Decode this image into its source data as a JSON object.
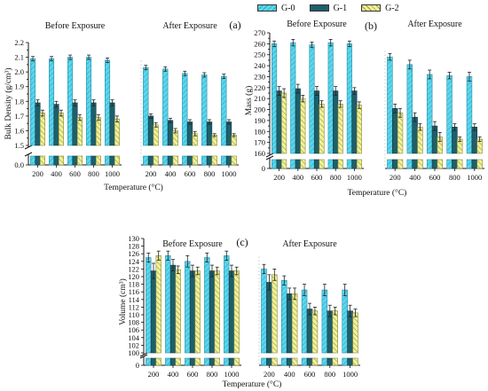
{
  "figure": {
    "legend": [
      {
        "name": "G-0",
        "color": "#5bd6ec",
        "pattern": "diag-right"
      },
      {
        "name": "G-1",
        "color": "#1e5f6b",
        "pattern": "none"
      },
      {
        "name": "G-2",
        "color": "#f1f19a",
        "pattern": "diag-left"
      }
    ]
  },
  "chart_data": [
    {
      "id": "a",
      "type": "bar",
      "panel_label": "(a)",
      "ylabel": "Bulk Density (g/cm³)",
      "xlabel": "Temperature (°C)",
      "ylim": [
        0,
        2.2
      ],
      "axis_break": [
        0.05,
        1.5
      ],
      "yticks": [
        0,
        1.5,
        1.55,
        1.6,
        1.65,
        1.7,
        1.75,
        1.8,
        1.85,
        1.9,
        1.95,
        2.0,
        2.05,
        2.1,
        2.15,
        2.2
      ],
      "ytick_labels": [
        "0.0",
        "1.5",
        "",
        "1.6",
        "",
        "1.7",
        "",
        "1.8",
        "",
        "1.9",
        "",
        "2.0",
        "",
        "2.1",
        "",
        "2.2"
      ],
      "groups": [
        {
          "title": "Before Exposure",
          "categories": [
            "200",
            "400",
            "600",
            "800",
            "1000"
          ],
          "series": [
            {
              "name": "G-0",
              "values": [
                2.09,
                2.09,
                2.1,
                2.1,
                2.08
              ],
              "errors": [
                0.015,
                0.015,
                0.015,
                0.015,
                0.015
              ]
            },
            {
              "name": "G-1",
              "values": [
                1.79,
                1.78,
                1.79,
                1.79,
                1.79
              ],
              "errors": [
                0.02,
                0.02,
                0.02,
                0.02,
                0.02
              ]
            },
            {
              "name": "G-2",
              "values": [
                1.72,
                1.72,
                1.69,
                1.69,
                1.68
              ],
              "errors": [
                0.02,
                0.02,
                0.02,
                0.02,
                0.02
              ]
            }
          ]
        },
        {
          "title": "After Exposure",
          "categories": [
            "200",
            "400",
            "600",
            "800",
            "1000"
          ],
          "series": [
            {
              "name": "G-0",
              "values": [
                2.03,
                2.02,
                1.99,
                1.98,
                1.97
              ],
              "errors": [
                0.015,
                0.015,
                0.015,
                0.015,
                0.015
              ]
            },
            {
              "name": "G-1",
              "values": [
                1.7,
                1.67,
                1.66,
                1.66,
                1.66
              ],
              "errors": [
                0.015,
                0.015,
                0.015,
                0.015,
                0.015
              ]
            },
            {
              "name": "G-2",
              "values": [
                1.64,
                1.6,
                1.58,
                1.57,
                1.57
              ],
              "errors": [
                0.015,
                0.015,
                0.015,
                0.01,
                0.01
              ]
            }
          ]
        }
      ]
    },
    {
      "id": "b",
      "type": "bar",
      "panel_label": "(b)",
      "ylabel": "Mass (g)",
      "xlabel": "Temperature (°C)",
      "ylim": [
        0,
        270
      ],
      "axis_break": [
        5,
        160
      ],
      "yticks": [
        0,
        160,
        165,
        170,
        175,
        180,
        185,
        190,
        195,
        200,
        205,
        210,
        215,
        220,
        225,
        230,
        235,
        240,
        245,
        250,
        255,
        260,
        265,
        270
      ],
      "ytick_labels": [
        "0",
        "160",
        "",
        "170",
        "",
        "180",
        "",
        "190",
        "",
        "200",
        "",
        "210",
        "",
        "220",
        "",
        "230",
        "",
        "240",
        "",
        "250",
        "",
        "260",
        "",
        "270"
      ],
      "groups": [
        {
          "title": "Before Exposure",
          "categories": [
            "200",
            "400",
            "600",
            "800",
            "1000"
          ],
          "series": [
            {
              "name": "G-0",
              "values": [
                260,
                261,
                259,
                261,
                260
              ],
              "errors": [
                2.5,
                3,
                2.5,
                3,
                2.5
              ]
            },
            {
              "name": "G-1",
              "values": [
                217,
                219,
                217,
                217,
                217
              ],
              "errors": [
                4,
                4,
                4,
                4,
                3
              ]
            },
            {
              "name": "G-2",
              "values": [
                215,
                210,
                205,
                205,
                204
              ],
              "errors": [
                4,
                3,
                3,
                3,
                3
              ]
            }
          ]
        },
        {
          "title": "After Exposure",
          "categories": [
            "200",
            "400",
            "600",
            "800",
            "1000"
          ],
          "series": [
            {
              "name": "G-0",
              "values": [
                248,
                241,
                232,
                231,
                230
              ],
              "errors": [
                3,
                4,
                4,
                3,
                4
              ]
            },
            {
              "name": "G-1",
              "values": [
                201,
                193,
                185,
                184,
                184
              ],
              "errors": [
                4,
                4,
                4,
                3,
                3
              ]
            },
            {
              "name": "G-2",
              "values": [
                197,
                184,
                175,
                173,
                173
              ],
              "errors": [
                4,
                3,
                4,
                2,
                2
              ]
            }
          ]
        }
      ]
    },
    {
      "id": "c",
      "type": "bar",
      "panel_label": "(c)",
      "ylabel": "Volume (cm³)",
      "xlabel": "Temperature (°C)",
      "ylim": [
        0,
        130
      ],
      "axis_break": [
        2,
        100
      ],
      "yticks": [
        0,
        100,
        102,
        104,
        106,
        108,
        110,
        112,
        114,
        116,
        118,
        120,
        122,
        124,
        126,
        128,
        130
      ],
      "ytick_labels": [
        "0",
        "100",
        "102",
        "104",
        "106",
        "108",
        "110",
        "112",
        "114",
        "116",
        "118",
        "120",
        "122",
        "124",
        "126",
        "128",
        "130"
      ],
      "groups": [
        {
          "title": "Before Exposure",
          "categories": [
            "200",
            "400",
            "600",
            "800",
            "1000"
          ],
          "series": [
            {
              "name": "G-0",
              "values": [
                125,
                125.5,
                124,
                125,
                125.5
              ],
              "errors": [
                1.2,
                1.2,
                1.5,
                1.2,
                1.2
              ]
            },
            {
              "name": "G-1",
              "values": [
                121.5,
                123,
                121.5,
                121.5,
                121.5
              ],
              "errors": [
                2,
                1.5,
                1.5,
                1.5,
                1.5
              ]
            },
            {
              "name": "G-2",
              "values": [
                125.5,
                121.8,
                121.5,
                121.5,
                121.5
              ],
              "errors": [
                1.2,
                1,
                1,
                1,
                1
              ]
            }
          ]
        },
        {
          "title": "After Exposure",
          "categories": [
            "200",
            "400",
            "600",
            "800",
            "1000"
          ],
          "series": [
            {
              "name": "G-0",
              "values": [
                122,
                119,
                116.5,
                116.5,
                116.5
              ],
              "errors": [
                1.2,
                1.2,
                1.5,
                1.5,
                1.5
              ]
            },
            {
              "name": "G-1",
              "values": [
                118.5,
                115.5,
                111.5,
                111,
                111
              ],
              "errors": [
                2,
                1.5,
                1.5,
                1.5,
                1.5
              ]
            },
            {
              "name": "G-2",
              "values": [
                120.5,
                115.5,
                111,
                111,
                110.5
              ],
              "errors": [
                1.5,
                1.5,
                1,
                1,
                1
              ]
            }
          ]
        }
      ]
    }
  ]
}
